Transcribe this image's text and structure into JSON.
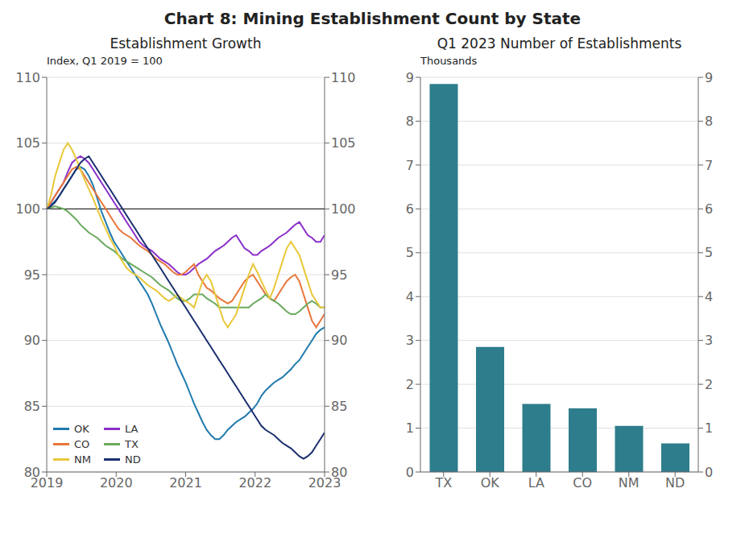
{
  "title": "Chart 8: Mining Establishment Count by State",
  "chart_data": [
    {
      "type": "line",
      "title": "Establishment Growth",
      "ylabel": "Index, Q1 2019 = 100",
      "x": [
        2019,
        2019.0606,
        2019.1212,
        2019.1818,
        2019.2424,
        2019.303,
        2019.3636,
        2019.4242,
        2019.4848,
        2019.5455,
        2019.6061,
        2019.6667,
        2019.7273,
        2019.7879,
        2019.8485,
        2019.9091,
        2019.9697,
        2020.0303,
        2020.0909,
        2020.1515,
        2020.2121,
        2020.2727,
        2020.3333,
        2020.3939,
        2020.4545,
        2020.5152,
        2020.5758,
        2020.6364,
        2020.697,
        2020.7576,
        2020.8182,
        2020.8788,
        2020.9394,
        2021,
        2021.0606,
        2021.1212,
        2021.1818,
        2021.2424,
        2021.303,
        2021.3636,
        2021.4242,
        2021.4848,
        2021.5455,
        2021.6061,
        2021.6667,
        2021.7273,
        2021.7879,
        2021.8485,
        2021.9091,
        2021.9697,
        2022.0303,
        2022.0909,
        2022.1515,
        2022.2121,
        2022.2727,
        2022.3333,
        2022.3939,
        2022.4545,
        2022.5152,
        2022.5758,
        2022.6364,
        2022.697,
        2022.7576,
        2022.8182,
        2022.8788,
        2022.9394,
        2023
      ],
      "xlim": [
        2019,
        2023
      ],
      "xticks": [
        2019,
        2020,
        2021,
        2022,
        2023
      ],
      "ylim": [
        80,
        110
      ],
      "yticks": [
        80,
        85,
        90,
        95,
        100,
        105,
        110
      ],
      "grid": true,
      "legend": "lower left",
      "reference_line": 100,
      "series": [
        {
          "name": "OK",
          "color": "#1f7aad",
          "values": [
            100.0,
            100.3,
            100.6,
            101.0,
            101.5,
            102.0,
            102.5,
            103.0,
            103.2,
            103.0,
            102.5,
            101.8,
            100.8,
            99.8,
            99.0,
            98.2,
            97.5,
            97.0,
            96.5,
            96.0,
            95.5,
            95.0,
            94.5,
            94.0,
            93.5,
            92.8,
            92.0,
            91.2,
            90.5,
            89.8,
            89.0,
            88.2,
            87.5,
            86.8,
            86.0,
            85.2,
            84.5,
            83.8,
            83.2,
            82.8,
            82.5,
            82.5,
            82.8,
            83.2,
            83.5,
            83.8,
            84.0,
            84.2,
            84.5,
            84.8,
            85.2,
            85.8,
            86.2,
            86.5,
            86.8,
            87.0,
            87.2,
            87.5,
            87.8,
            88.2,
            88.5,
            89.0,
            89.5,
            90.0,
            90.5,
            90.8,
            91.0
          ]
        },
        {
          "name": "LA",
          "color": "#8b2fc9",
          "values": [
            100.0,
            100.5,
            101.0,
            101.5,
            102.0,
            102.8,
            103.5,
            103.8,
            104.0,
            103.8,
            103.5,
            103.0,
            102.5,
            102.0,
            101.5,
            101.0,
            100.5,
            100.0,
            99.5,
            99.0,
            98.5,
            98.0,
            97.5,
            97.2,
            97.0,
            96.8,
            96.5,
            96.2,
            96.0,
            95.8,
            95.5,
            95.2,
            95.0,
            95.0,
            95.2,
            95.5,
            95.8,
            96.0,
            96.2,
            96.5,
            96.8,
            97.0,
            97.2,
            97.5,
            97.8,
            98.0,
            97.5,
            97.0,
            96.8,
            96.5,
            96.5,
            96.8,
            97.0,
            97.2,
            97.5,
            97.8,
            98.0,
            98.2,
            98.5,
            98.8,
            99.0,
            98.5,
            98.0,
            97.8,
            97.5,
            97.5,
            98.0
          ]
        },
        {
          "name": "CO",
          "color": "#e8763a",
          "values": [
            100.0,
            100.5,
            101.0,
            101.5,
            102.0,
            102.5,
            103.0,
            103.2,
            103.0,
            102.5,
            102.0,
            101.5,
            101.0,
            100.5,
            100.0,
            99.5,
            99.0,
            98.5,
            98.2,
            98.0,
            97.8,
            97.5,
            97.2,
            97.0,
            96.8,
            96.5,
            96.2,
            96.0,
            95.8,
            95.5,
            95.2,
            95.0,
            95.0,
            95.2,
            95.5,
            95.8,
            95.0,
            94.5,
            94.0,
            93.8,
            93.5,
            93.2,
            93.0,
            92.8,
            93.0,
            93.5,
            94.0,
            94.5,
            94.8,
            95.0,
            94.5,
            94.0,
            93.5,
            93.2,
            93.0,
            93.5,
            94.0,
            94.5,
            94.8,
            95.0,
            94.5,
            93.5,
            92.5,
            91.5,
            91.0,
            91.5,
            92.0
          ]
        },
        {
          "name": "TX",
          "color": "#6aaa5e",
          "values": [
            100.0,
            100.1,
            100.2,
            100.1,
            100.0,
            99.8,
            99.5,
            99.2,
            98.8,
            98.5,
            98.2,
            98.0,
            97.8,
            97.5,
            97.2,
            97.0,
            96.8,
            96.5,
            96.2,
            96.0,
            95.8,
            95.6,
            95.4,
            95.2,
            95.0,
            94.8,
            94.5,
            94.2,
            94.0,
            93.8,
            93.5,
            93.2,
            93.0,
            93.0,
            93.2,
            93.5,
            93.5,
            93.5,
            93.2,
            93.0,
            92.8,
            92.5,
            92.5,
            92.5,
            92.5,
            92.5,
            92.5,
            92.5,
            92.5,
            92.8,
            93.0,
            93.2,
            93.5,
            93.2,
            93.0,
            92.8,
            92.5,
            92.2,
            92.0,
            92.0,
            92.2,
            92.5,
            92.8,
            93.0,
            92.8,
            92.5,
            92.5
          ]
        },
        {
          "name": "NM",
          "color": "#e8c83a",
          "values": [
            100.0,
            101.0,
            102.5,
            103.5,
            104.5,
            105.0,
            104.5,
            103.8,
            103.0,
            102.2,
            101.5,
            100.8,
            100.0,
            99.2,
            98.5,
            97.8,
            97.2,
            96.5,
            96.0,
            95.5,
            95.2,
            95.0,
            94.8,
            94.5,
            94.2,
            94.0,
            93.8,
            93.5,
            93.2,
            93.0,
            93.2,
            93.5,
            93.2,
            93.0,
            92.8,
            92.5,
            93.5,
            94.5,
            95.0,
            94.5,
            93.5,
            92.5,
            91.5,
            91.0,
            91.5,
            92.0,
            93.0,
            94.0,
            95.0,
            95.8,
            95.2,
            94.5,
            93.8,
            93.2,
            94.0,
            95.0,
            96.0,
            97.0,
            97.5,
            97.0,
            96.5,
            95.5,
            94.5,
            93.5,
            93.0,
            92.5,
            92.5
          ]
        },
        {
          "name": "ND",
          "color": "#1a2f6e",
          "values": [
            100.0,
            100.2,
            100.5,
            101.0,
            101.5,
            102.0,
            102.5,
            103.0,
            103.5,
            103.8,
            104.0,
            103.5,
            103.0,
            102.5,
            102.0,
            101.5,
            101.0,
            100.5,
            100.0,
            99.5,
            99.0,
            98.5,
            98.0,
            97.5,
            97.0,
            96.5,
            96.0,
            95.5,
            95.0,
            94.5,
            94.0,
            93.5,
            93.0,
            92.5,
            92.0,
            91.5,
            91.0,
            90.5,
            90.0,
            89.5,
            89.0,
            88.5,
            88.0,
            87.5,
            87.0,
            86.5,
            86.0,
            85.5,
            85.0,
            84.5,
            84.0,
            83.5,
            83.2,
            83.0,
            82.8,
            82.5,
            82.2,
            82.0,
            81.8,
            81.5,
            81.2,
            81.0,
            81.2,
            81.5,
            82.0,
            82.5,
            83.0
          ]
        }
      ]
    },
    {
      "type": "bar",
      "title": "Q1 2023 Number of Establishments",
      "ylabel": "Thousands",
      "categories": [
        "TX",
        "OK",
        "LA",
        "CO",
        "NM",
        "ND"
      ],
      "values": [
        8.85,
        2.85,
        1.55,
        1.45,
        1.05,
        0.65
      ],
      "color": "#2e7d8c",
      "ylim": [
        0,
        9
      ],
      "yticks": [
        0,
        1,
        2,
        3,
        4,
        5,
        6,
        7,
        8,
        9
      ],
      "grid": true
    }
  ]
}
